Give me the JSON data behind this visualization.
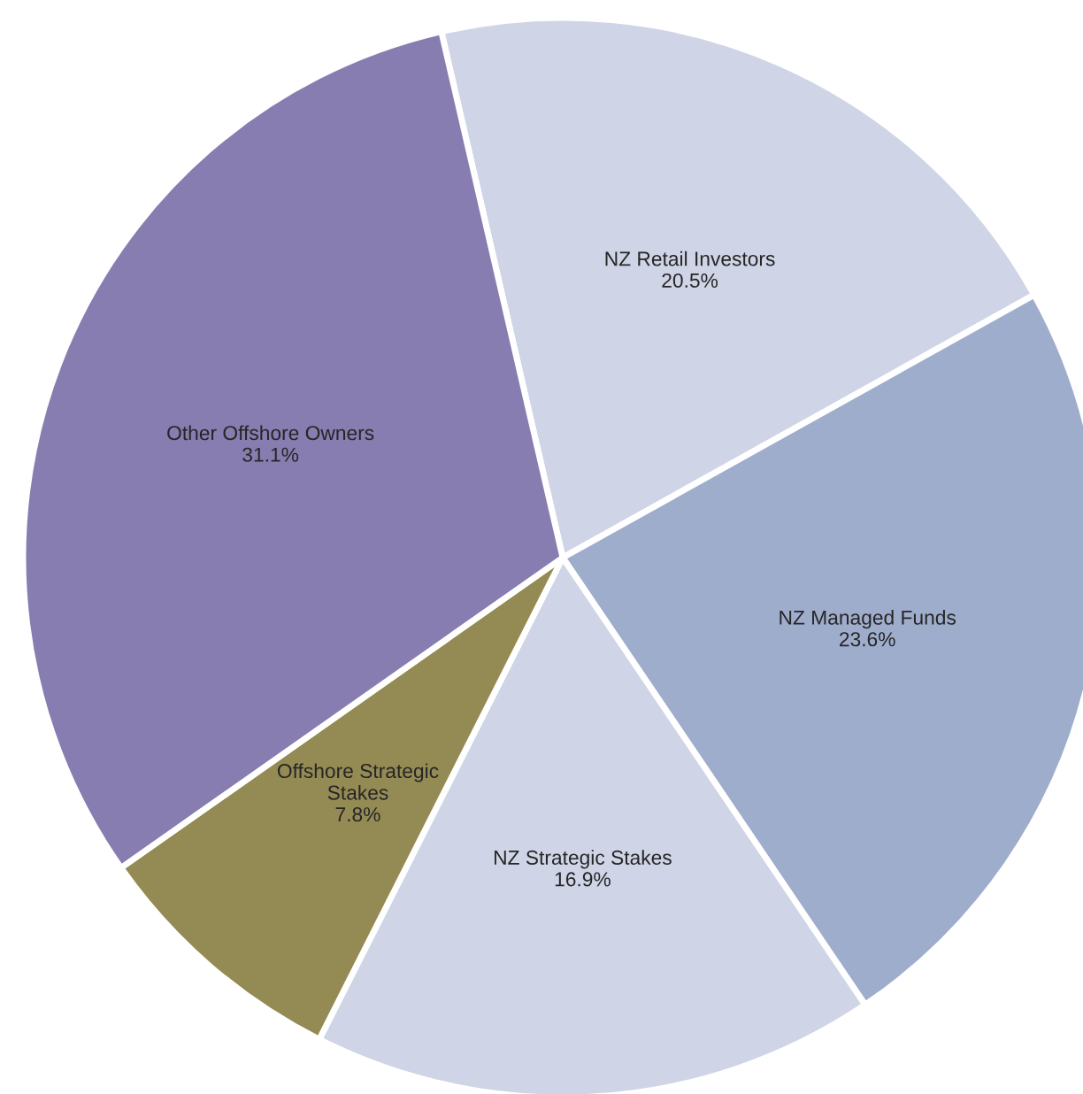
{
  "chart_data": {
    "type": "pie",
    "categories": [
      "NZ Retail Investors",
      "NZ Managed Funds",
      "NZ Strategic Stakes",
      "Offshore Strategic\nStakes",
      "Other Offshore Owners"
    ],
    "values": [
      20.5,
      23.6,
      16.9,
      7.8,
      31.1
    ],
    "colors": [
      "#cfd5e6",
      "#9fadcd",
      "#cfd5e6",
      "#948a54",
      "#877db0"
    ],
    "value_labels": [
      "20.5%",
      "23.6%",
      "16.9%",
      "7.8%",
      "31.1%"
    ]
  }
}
